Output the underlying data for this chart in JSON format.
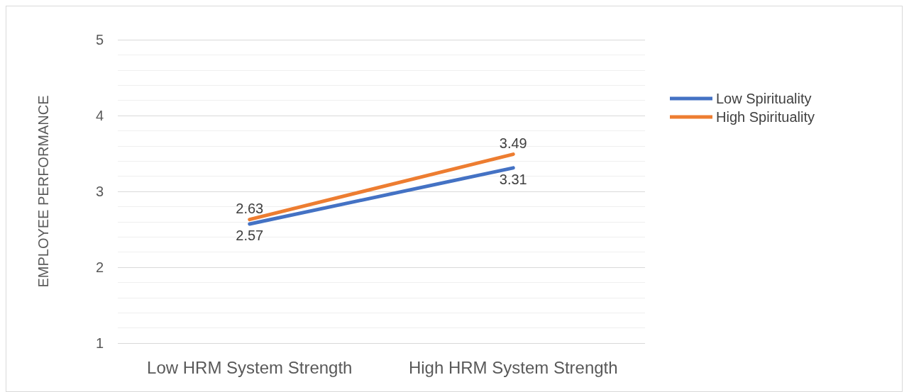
{
  "chart_data": {
    "type": "line",
    "ylabel": "EMPLOYEE PERFORMANCE",
    "categories": [
      "Low HRM System Strength",
      "High HRM System Strength"
    ],
    "series": [
      {
        "name": "Low Spirituality",
        "color": "#4472c4",
        "values": [
          2.57,
          3.31
        ]
      },
      {
        "name": "High Spirituality",
        "color": "#ed7d31",
        "values": [
          2.63,
          3.49
        ]
      }
    ],
    "ylim": [
      1,
      5
    ],
    "yticks": [
      1,
      {
        "value": 1.2,
        "label": null
      },
      {
        "value": 1.4,
        "label": null
      },
      {
        "value": 1.6,
        "label": null
      },
      {
        "value": 1.8,
        "label": null
      },
      2,
      {
        "value": 2.2,
        "label": null
      },
      {
        "value": 2.4,
        "label": null
      },
      {
        "value": 2.6,
        "label": null
      },
      {
        "value": 2.8,
        "label": null
      },
      3,
      {
        "value": 3.2,
        "label": null
      },
      {
        "value": 3.4,
        "label": null
      },
      {
        "value": 3.6,
        "label": null
      },
      {
        "value": 3.8,
        "label": null
      },
      4,
      {
        "value": 4.2,
        "label": null
      },
      {
        "value": 4.4,
        "label": null
      },
      {
        "value": 4.6,
        "label": null
      },
      {
        "value": 4.8,
        "label": null
      },
      5
    ],
    "grid": true,
    "legend": "right",
    "marker": "none",
    "line_style": "solid",
    "data_labels": true
  }
}
